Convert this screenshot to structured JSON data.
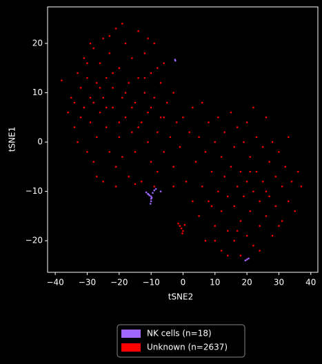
{
  "chart_data": {
    "type": "scatter",
    "x_label": "tSNE2",
    "y_label": "tSNE1",
    "xlim": [
      -42.4,
      42.2
    ],
    "ylim": [
      -26.4,
      27.4
    ],
    "xticks": [
      {
        "value": -40,
        "label": "−40"
      },
      {
        "value": -30,
        "label": "−30"
      },
      {
        "value": -20,
        "label": "−20"
      },
      {
        "value": -10,
        "label": "−10"
      },
      0,
      10,
      20,
      30,
      40
    ],
    "yticks": [
      {
        "value": -20,
        "label": "−20"
      },
      {
        "value": -10,
        "label": "−10"
      },
      0,
      10,
      20
    ],
    "legend_position": "bottom",
    "series": [
      {
        "name": "Unknown (n=2637)",
        "color": "#ff0000",
        "x": [
          -38,
          -36,
          -35,
          -34,
          -33,
          -33,
          -32,
          -31,
          -31,
          -30,
          -30,
          -29,
          -29,
          -28,
          -28,
          -27,
          -27,
          -26,
          -26,
          -25,
          -25,
          -25,
          -24,
          -24,
          -23,
          -23,
          -22,
          -22,
          -21,
          -21,
          -20,
          -20,
          -19,
          -19,
          -18,
          -18,
          -17,
          -17,
          -16,
          -16,
          -15,
          -15,
          -14,
          -14,
          -13,
          -13,
          -12,
          -12,
          -11,
          -11,
          -10,
          -10,
          -9,
          -9,
          -8,
          -8,
          -7,
          -7,
          -6,
          -6,
          -5,
          -4,
          -3,
          -3,
          -2,
          -30,
          -28,
          -26,
          -24,
          -22,
          -20,
          -18,
          -16,
          -14,
          -12,
          -10,
          -8,
          -6,
          -32,
          -34,
          -29,
          -23,
          -19,
          -11,
          -9,
          -15,
          -21,
          -27,
          -3,
          -1,
          0,
          1,
          2,
          3,
          3,
          4,
          5,
          5,
          6,
          6,
          7,
          7,
          8,
          8,
          9,
          10,
          10,
          11,
          11,
          12,
          12,
          12,
          13,
          13,
          14,
          14,
          15,
          15,
          16,
          16,
          16,
          17,
          17,
          18,
          18,
          18,
          19,
          19,
          20,
          20,
          20,
          21,
          21,
          22,
          22,
          22,
          23,
          23,
          24,
          24,
          25,
          25,
          26,
          26,
          27,
          27,
          28,
          28,
          29,
          29,
          30,
          31,
          31,
          32,
          33,
          33,
          34,
          35,
          36,
          37,
          14,
          24,
          30,
          10,
          9,
          17,
          26,
          21,
          -1,
          0,
          -0.5,
          -1.5,
          0.5,
          -0.2
        ],
        "y": [
          12.5,
          6,
          9,
          3,
          14,
          0,
          11,
          7,
          17,
          -2,
          13,
          4,
          9,
          19,
          -4,
          12,
          1,
          16,
          6,
          -8,
          9,
          21,
          3,
          13,
          -2,
          18,
          7,
          11,
          23,
          -5,
          1,
          15,
          9,
          -3,
          20,
          5,
          12,
          -7,
          2,
          17,
          8,
          -2,
          22.5,
          13,
          4,
          -8,
          10,
          18,
          0,
          6,
          14,
          -4,
          20,
          9,
          2,
          -6,
          12,
          5,
          16,
          -2,
          8,
          1,
          10,
          -5,
          4,
          16,
          8,
          11,
          7,
          14,
          4,
          10,
          7,
          3,
          13,
          7,
          15,
          5,
          5,
          8,
          20,
          21.5,
          24,
          21,
          -9,
          -8.5,
          -9,
          -7,
          -9,
          -1,
          5,
          -8,
          2,
          -12,
          7,
          -4,
          -15,
          1,
          -9,
          8,
          -20,
          -2,
          -12,
          4,
          -6,
          -17,
          0,
          -10,
          5,
          -22,
          -14,
          -3,
          -7,
          2,
          -18,
          -11,
          -5,
          6,
          -20,
          -13,
          -1,
          -9,
          3,
          -23,
          -16,
          -6,
          -11,
          0,
          -19,
          -8,
          4,
          -14,
          -3,
          -21,
          -10,
          7,
          -6,
          1,
          -17,
          -12,
          -8,
          -1,
          -15,
          5,
          -11,
          -4,
          -19,
          0,
          -13,
          -7,
          -2,
          -16,
          -9,
          -5,
          -12,
          1,
          -8,
          -14,
          -6,
          -9,
          -23,
          -22,
          -17,
          -20,
          -13,
          -18,
          -10,
          -6,
          -17,
          -18,
          -17.5,
          -16.5,
          -16.8,
          -18.5
        ]
      },
      {
        "name": "NK cells (n=18)",
        "color": "#a066ff",
        "x": [
          -11,
          -10.5,
          -10,
          -10,
          -9.5,
          -9,
          -8.5,
          -7,
          -11.5,
          -10,
          -10.2,
          -2.5,
          -2.4,
          19.5,
          20,
          20.5,
          -9.8,
          -10.8
        ],
        "y": [
          -10.5,
          -10.8,
          -11,
          -12,
          -10.3,
          -9.8,
          -9.5,
          -10,
          -10.2,
          -11.5,
          -12.5,
          16.7,
          16.5,
          -24,
          -23.8,
          -23.6,
          -11.3,
          -10.6
        ]
      }
    ]
  }
}
